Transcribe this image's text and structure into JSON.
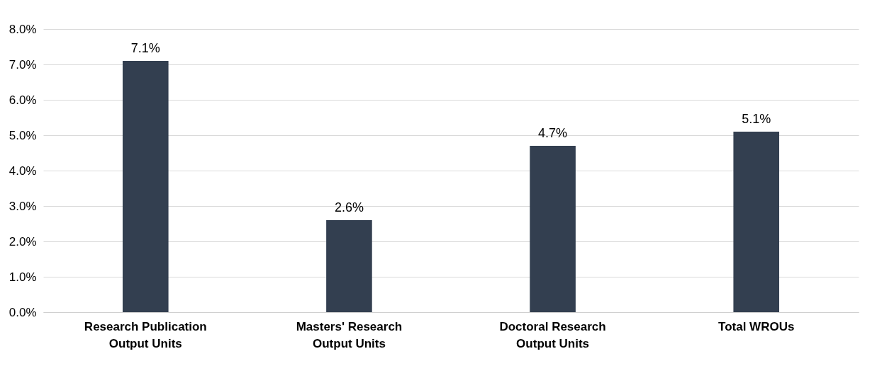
{
  "chart_data": {
    "type": "bar",
    "categories": [
      "Research Publication Output Units",
      "Masters' Research Output Units",
      "Doctoral Research Output Units",
      "Total WROUs"
    ],
    "values": [
      7.1,
      2.6,
      4.7,
      5.1
    ],
    "color": "#333f50",
    "value_labels": [
      "7.1%",
      "2.6%",
      "4.7%",
      "5.1%"
    ],
    "ylim": [
      0,
      8
    ],
    "yticks": [
      {
        "value": 0,
        "label": "0.0%"
      },
      {
        "value": 1,
        "label": "1.0%"
      },
      {
        "value": 2,
        "label": "2.0%"
      },
      {
        "value": 3,
        "label": "3.0%"
      },
      {
        "value": 4,
        "label": "4.0%"
      },
      {
        "value": 5,
        "label": "5.0%"
      },
      {
        "value": 6,
        "label": "6.0%"
      },
      {
        "value": 7,
        "label": "7.0%"
      },
      {
        "value": 8,
        "label": "8.0%"
      }
    ],
    "grid": "y"
  }
}
